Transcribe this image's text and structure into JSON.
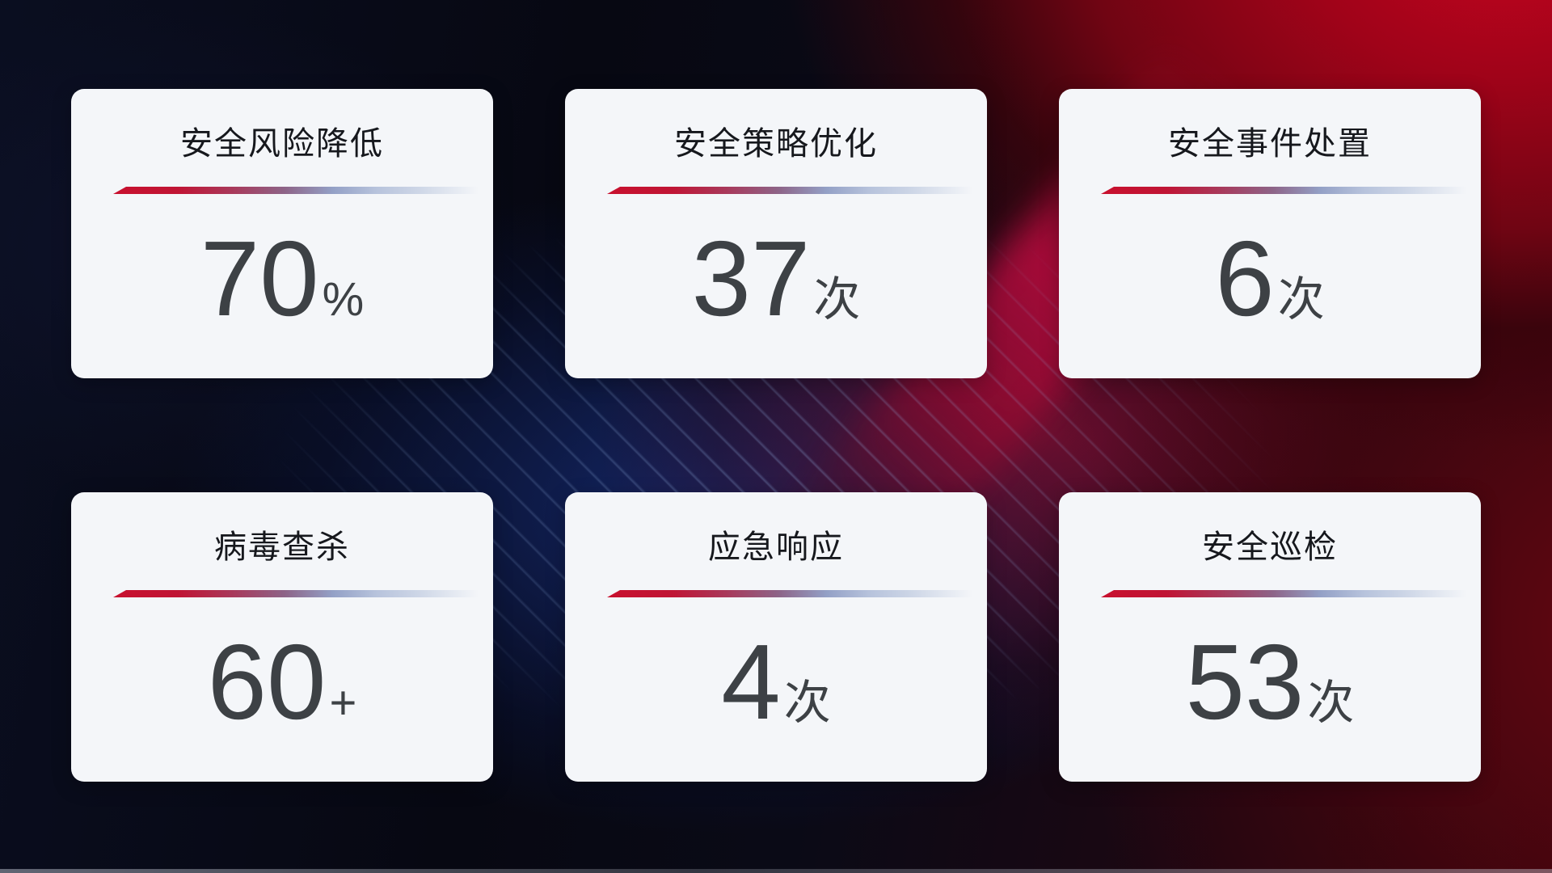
{
  "cards": [
    {
      "title": "安全风险降低",
      "value": "70",
      "unit": "%"
    },
    {
      "title": "安全策略优化",
      "value": "37",
      "unit": "次"
    },
    {
      "title": "安全事件处置",
      "value": "6",
      "unit": "次"
    },
    {
      "title": "病毒查杀",
      "value": "60",
      "unit": "+"
    },
    {
      "title": "应急响应",
      "value": "4",
      "unit": "次"
    },
    {
      "title": "安全巡检",
      "value": "53",
      "unit": "次"
    }
  ],
  "colors": {
    "accent_red": "#c8102e",
    "divider_blue_gray": "#b7c3dc",
    "card_background": "#f4f6f9",
    "title_text": "#16181d",
    "value_text": "#3d4145",
    "background_red_glow": "#a00319",
    "background_blue_glow": "#152a70",
    "background_base": "#070812"
  }
}
